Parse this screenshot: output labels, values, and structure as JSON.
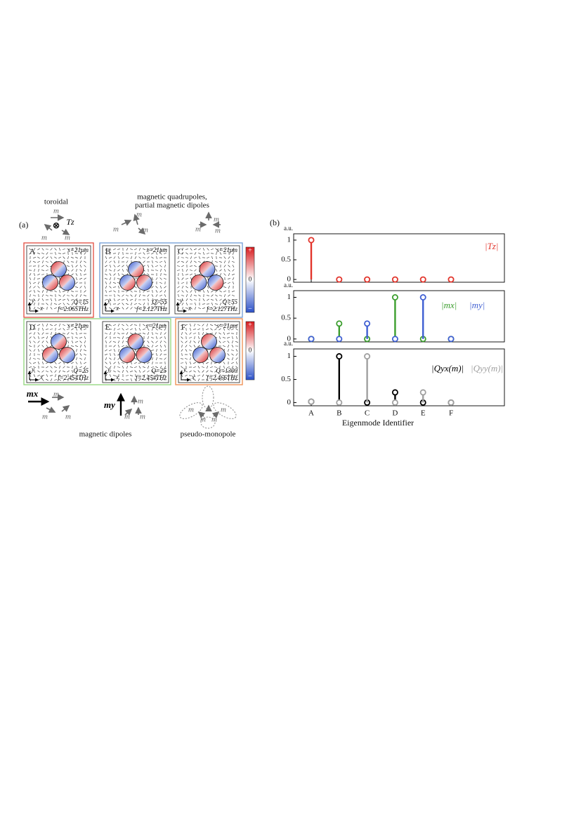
{
  "panel_a": {
    "label": "(a)",
    "headings": {
      "toroidal": "toroidal",
      "quad_1": "magnetic quadrupoles,",
      "quad_2": "partial magnetic dipoles",
      "dipoles": "magnetic dipoles",
      "monopole": "pseudo-monopole"
    },
    "sketch_labels": [
      "m",
      "m",
      "m",
      "Tz",
      "m",
      "m",
      "m",
      "m",
      "m",
      "m",
      "mx",
      "m",
      "m",
      "m",
      "my",
      "m",
      "m",
      "m",
      "m",
      "m",
      "m",
      "m"
    ],
    "axes": [
      "x",
      "y"
    ],
    "modes": [
      {
        "id": "A",
        "s": "s=21μm",
        "Q": "Q=15",
        "f": "f=2.065THz"
      },
      {
        "id": "B",
        "s": "s=21μm",
        "Q": "Q=55",
        "f": "f=2.127THz"
      },
      {
        "id": "C",
        "s": "s=21μm",
        "Q": "Q=55",
        "f": "f=2.127THz"
      },
      {
        "id": "D",
        "s": "s=21μm",
        "Q": "Q=25",
        "f": "f=2.454THz"
      },
      {
        "id": "E",
        "s": "s=21μm",
        "Q": "Q=25",
        "f": "f=2.454THz"
      },
      {
        "id": "F",
        "s": "s=21μm",
        "Q": "Q=1300",
        "f": "f=2.466THz"
      }
    ],
    "colorbar": {
      "max": "+",
      "mid": "0",
      "min": "−"
    }
  },
  "panel_b_label": "(b)",
  "chart_data": [
    {
      "type": "stem",
      "ylabel": "a.u.",
      "ylim": [
        -0.07,
        1.16
      ],
      "yticks": [
        0,
        0.5,
        1
      ],
      "series": [
        {
          "name": "|Tz|",
          "color": "#e2352c",
          "values": [
            1,
            0,
            0,
            0,
            0,
            0
          ]
        }
      ]
    },
    {
      "type": "stem",
      "ylabel": "a.u.",
      "ylim": [
        -0.07,
        1.16
      ],
      "yticks": [
        0,
        0.5,
        1
      ],
      "series": [
        {
          "name": "|mx|",
          "color": "#3c9e2e",
          "values": [
            0,
            0.37,
            0,
            1,
            0,
            0
          ]
        },
        {
          "name": "|my|",
          "color": "#3f5fd2",
          "values": [
            0,
            0,
            0.37,
            0,
            1,
            0
          ]
        }
      ]
    },
    {
      "type": "stem",
      "ylabel": "a.u.",
      "xlabel": "Eigenmode Identifier",
      "ylim": [
        -0.07,
        1.16
      ],
      "yticks": [
        0,
        0.5,
        1
      ],
      "categories": [
        "A",
        "B",
        "C",
        "D",
        "E",
        "F"
      ],
      "series": [
        {
          "name": "|Qyx(m)|",
          "color": "#000000",
          "values": [
            0.02,
            1,
            0,
            0.22,
            0,
            0
          ]
        },
        {
          "name": "|Qyy(m)|",
          "color": "#a0a0a0",
          "values": [
            0.02,
            0,
            1,
            0,
            0.22,
            0
          ]
        }
      ]
    }
  ]
}
